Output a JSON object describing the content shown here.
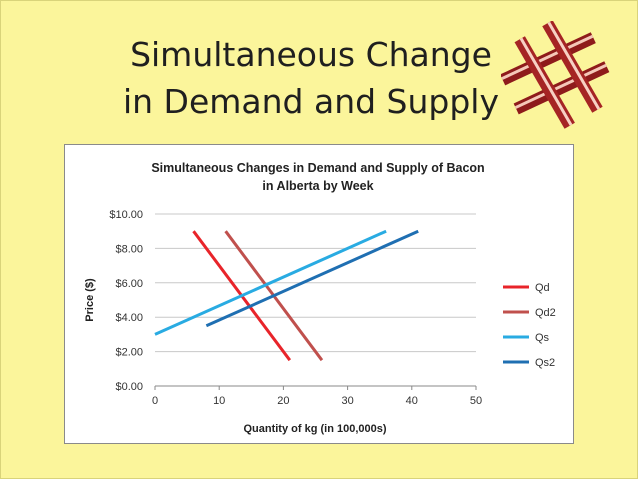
{
  "slide": {
    "title_line1": "Simultaneous Change",
    "title_line2": "in Demand and Supply"
  },
  "chart_data": {
    "type": "line",
    "title_line1": "Simultaneous Changes in Demand and Supply of Bacon",
    "title_line2": "in Alberta by Week",
    "xlabel": "Quantity of kg (in 100,000s)",
    "ylabel": "Price ($)",
    "xlim": [
      0,
      50
    ],
    "ylim": [
      0,
      10
    ],
    "xticks": [
      "0",
      "10",
      "20",
      "30",
      "40",
      "50"
    ],
    "yticks": [
      "$0.00",
      "$2.00",
      "$4.00",
      "$6.00",
      "$8.00",
      "$10.00"
    ],
    "grid": "horizontal",
    "legend_position": "right",
    "series": [
      {
        "name": "Qd",
        "color": "#E8242A",
        "points": [
          [
            6,
            9
          ],
          [
            21,
            1.5
          ]
        ]
      },
      {
        "name": "Qd2",
        "color": "#C0504D",
        "points": [
          [
            11,
            9
          ],
          [
            26,
            1.5
          ]
        ]
      },
      {
        "name": "Qs",
        "color": "#29ABE2",
        "points": [
          [
            0,
            3
          ],
          [
            36,
            9
          ]
        ]
      },
      {
        "name": "Qs2",
        "color": "#1F6FB2",
        "points": [
          [
            8,
            3.5
          ],
          [
            41,
            9
          ]
        ]
      }
    ]
  }
}
